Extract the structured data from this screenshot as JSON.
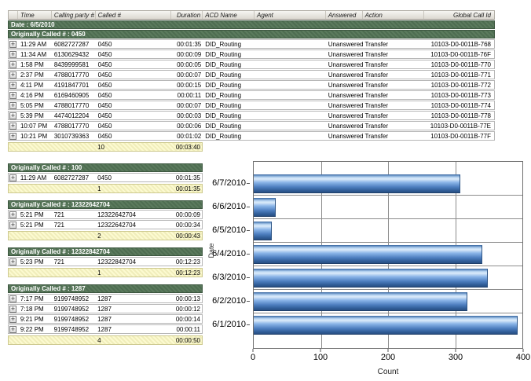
{
  "table": {
    "expand_glyph": "+",
    "columns": [
      {
        "key": "expand",
        "label": ""
      },
      {
        "key": "time",
        "label": "Time"
      },
      {
        "key": "calling-party",
        "label": "Calling party #"
      },
      {
        "key": "called",
        "label": "Called #"
      },
      {
        "key": "duration",
        "label": "Duration"
      },
      {
        "key": "acd-name",
        "label": "ACD Name"
      },
      {
        "key": "agent",
        "label": "Agent"
      },
      {
        "key": "answered",
        "label": "Answered"
      },
      {
        "key": "action",
        "label": "Action"
      },
      {
        "key": "global-call-id",
        "label": "Global Call Id"
      }
    ],
    "date_header": "Date : 6/5/2010",
    "groups": [
      {
        "header": "Originally Called # : 0450",
        "full_width": true,
        "rows": [
          [
            "11:29 AM",
            "6082727287",
            "0450",
            "00:01:35",
            "DID_Routing",
            "",
            "Unanswered",
            "Transfer",
            "10103-D0-0011B-768"
          ],
          [
            "11:34 AM",
            "6130629432",
            "0450",
            "00:00:09",
            "DID_Routing",
            "",
            "Unanswered",
            "Transfer",
            "10103-D0-0011B-76F"
          ],
          [
            "1:58 PM",
            "8439999581",
            "0450",
            "00:00:05",
            "DID_Routing",
            "",
            "Unanswered",
            "Transfer",
            "10103-D0-0011B-770"
          ],
          [
            "2:37 PM",
            "4788017770",
            "0450",
            "00:00:07",
            "DID_Routing",
            "",
            "Unanswered",
            "Transfer",
            "10103-D0-0011B-771"
          ],
          [
            "4:11 PM",
            "4191847701",
            "0450",
            "00:00:15",
            "DID_Routing",
            "",
            "Unanswered",
            "Transfer",
            "10103-D0-0011B-772"
          ],
          [
            "4:16 PM",
            "6169460905",
            "0450",
            "00:00:11",
            "DID_Routing",
            "",
            "Unanswered",
            "Transfer",
            "10103-D0-0011B-773"
          ],
          [
            "5:05 PM",
            "4788017770",
            "0450",
            "00:00:07",
            "DID_Routing",
            "",
            "Unanswered",
            "Transfer",
            "10103-D0-0011B-774"
          ],
          [
            "5:39 PM",
            "4474012204",
            "0450",
            "00:00:03",
            "DID_Routing",
            "",
            "Unanswered",
            "Transfer",
            "10103-D0-0011B-778"
          ],
          [
            "10:07 PM",
            "4788017770",
            "0450",
            "00:00:06",
            "DID_Routing",
            "",
            "Unanswered",
            "Transfer",
            "10103-D0-0011B-77E"
          ],
          [
            "10:21 PM",
            "3010739363",
            "0450",
            "00:01:02",
            "DID_Routing",
            "",
            "Unanswered",
            "Transfer",
            "10103-D0-0011B-77F"
          ]
        ],
        "summary": {
          "count": "10",
          "duration": "00:03:40"
        }
      },
      {
        "header": "Originally Called # : 100",
        "full_width": false,
        "rows": [
          [
            "11:29 AM",
            "6082727287",
            "0450",
            "00:01:35"
          ]
        ],
        "summary": {
          "count": "1",
          "duration": "00:01:35"
        }
      },
      {
        "header": "Originally Called # : 12322642704",
        "full_width": false,
        "rows": [
          [
            "5:21 PM",
            "721",
            "12322642704",
            "00:00:09"
          ],
          [
            "5:21 PM",
            "721",
            "12322642704",
            "00:00:34"
          ]
        ],
        "summary": {
          "count": "2",
          "duration": "00:00:43"
        }
      },
      {
        "header": "Originally Called # : 12322842704",
        "full_width": false,
        "rows": [
          [
            "5:23 PM",
            "721",
            "12322842704",
            "00:12:23"
          ]
        ],
        "summary": {
          "count": "1",
          "duration": "00:12:23"
        }
      },
      {
        "header": "Originally Called # : 1287",
        "full_width": false,
        "rows": [
          [
            "7:17 PM",
            "9199748952",
            "1287",
            "00:00:13"
          ],
          [
            "7:18 PM",
            "9199748952",
            "1287",
            "00:00:12"
          ],
          [
            "9:21 PM",
            "9199748952",
            "1287",
            "00:00:14"
          ],
          [
            "9:22 PM",
            "9199748952",
            "1287",
            "00:00:11"
          ]
        ],
        "summary": {
          "count": "4",
          "duration": "00:00:50"
        }
      }
    ]
  },
  "chart_data": {
    "type": "bar",
    "orientation": "horizontal",
    "title": "",
    "categories": [
      "6/7/2010",
      "6/6/2010",
      "6/5/2010",
      "6/4/2010",
      "6/3/2010",
      "6/2/2010",
      "6/1/2010"
    ],
    "values": [
      308,
      33,
      27,
      340,
      349,
      318,
      393
    ],
    "xlabel": "Count",
    "ylabel": "Date",
    "xlim": [
      0,
      400
    ],
    "xticks": [
      "0",
      "100",
      "200",
      "300",
      "400"
    ],
    "grid": true,
    "legend": false
  },
  "colors": {
    "group_band_green": "#4e6d51",
    "summary_yellow": "#fcfad0",
    "bar_blue": "#5e8cc8",
    "gridline_gray": "#8c8c8c"
  }
}
